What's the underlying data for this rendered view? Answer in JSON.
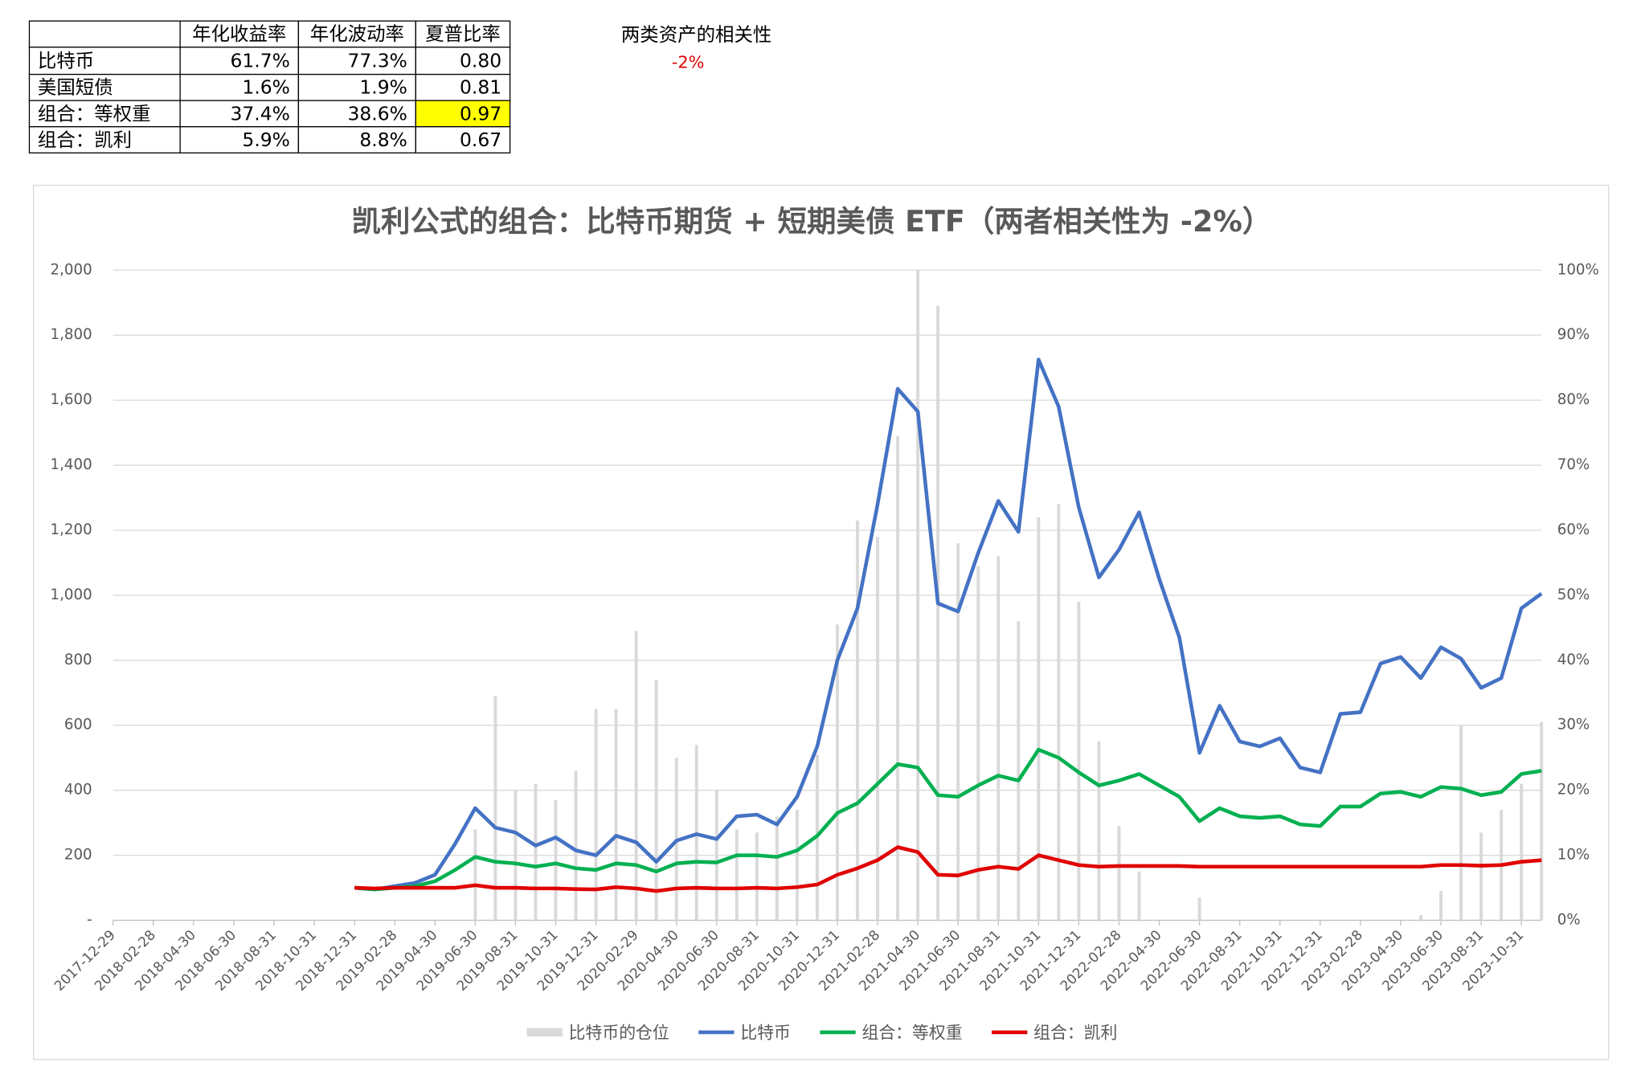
{
  "table": {
    "header": [
      "",
      "年化收益率",
      "年化波动率",
      "夏普比率"
    ],
    "rows": [
      [
        "比特币",
        "61.7%",
        "77.3%",
        "0.80"
      ],
      [
        "美国短债",
        "1.6%",
        "1.9%",
        "0.81"
      ],
      [
        "组合：等权重",
        "37.4%",
        "38.6%",
        "0.97"
      ],
      [
        "组合：凯利",
        "5.9%",
        "8.8%",
        "0.67"
      ]
    ],
    "highlight": {
      "row": 2,
      "col": 3,
      "color": "#ffff00"
    }
  },
  "correlation": {
    "label": "两类资产的相关性",
    "value": "-2%",
    "color": "#e00000"
  },
  "chart_data": {
    "type": "combo",
    "title": "凯利公式的组合：比特币期货 + 短期美债 ETF（两者相关性为 -2%）",
    "categories": [
      "2017-12-29",
      null,
      "2018-02-28",
      null,
      "2018-04-30",
      null,
      "2018-06-30",
      null,
      "2018-08-31",
      null,
      "2018-10-31",
      null,
      "2018-12-31",
      null,
      "2019-02-28",
      null,
      "2019-04-30",
      null,
      "2019-06-30",
      null,
      "2019-08-31",
      null,
      "2019-10-31",
      null,
      "2019-12-31",
      null,
      "2020-02-29",
      null,
      "2020-04-30",
      null,
      "2020-06-30",
      null,
      "2020-08-31",
      null,
      "2020-10-31",
      null,
      "2020-12-31",
      null,
      "2021-02-28",
      null,
      "2021-04-30",
      null,
      "2021-06-30",
      null,
      "2021-08-31",
      null,
      "2021-10-31",
      null,
      "2021-12-31",
      null,
      "2022-02-28",
      null,
      "2022-04-30",
      null,
      "2022-06-30",
      null,
      "2022-08-31",
      null,
      "2022-10-31",
      null,
      "2022-12-31",
      null,
      "2023-02-28",
      null,
      "2023-04-30",
      null,
      "2023-06-30",
      null,
      "2023-08-31",
      null,
      "2023-10-31",
      null
    ],
    "series": [
      {
        "name": "比特币的仓位",
        "type": "bar",
        "axis": "y2",
        "color": "#d9d9d9",
        "values": [
          null,
          null,
          null,
          null,
          null,
          null,
          null,
          null,
          null,
          null,
          null,
          null,
          0,
          0,
          0,
          0,
          0,
          0,
          14,
          34.5,
          20,
          21,
          18.5,
          23,
          32.5,
          32.5,
          44.5,
          37,
          25,
          27,
          20,
          14,
          13.5,
          16,
          17,
          25.5,
          45.5,
          61.5,
          59,
          74.5,
          100,
          94.5,
          58,
          54.5,
          56,
          46,
          62,
          64,
          49,
          27.5,
          14.5,
          7.5,
          0,
          0,
          3.5,
          0,
          0,
          0,
          0,
          0,
          0,
          0,
          0,
          0,
          0,
          0.8,
          4.5,
          30,
          13.5,
          17,
          21,
          30.5
        ]
      },
      {
        "name": "比特币",
        "type": "line",
        "color": "#4472c4",
        "values": [
          null,
          null,
          null,
          null,
          null,
          null,
          null,
          null,
          null,
          null,
          null,
          null,
          100,
          95,
          105,
          115,
          140,
          235,
          345,
          285,
          270,
          230,
          255,
          215,
          200,
          260,
          240,
          180,
          245,
          265,
          250,
          320,
          325,
          295,
          380,
          535,
          800,
          960,
          1280,
          1635,
          1565,
          975,
          950,
          1130,
          1290,
          1195,
          1725,
          1580,
          1270,
          1055,
          1140,
          1255,
          1050,
          870,
          515,
          660,
          550,
          535,
          560,
          470,
          455,
          635,
          640,
          790,
          810,
          745,
          840,
          805,
          715,
          745,
          960,
          1005
        ]
      },
      {
        "name": "组合：等权重",
        "type": "line",
        "color": "#00b050",
        "values": [
          null,
          null,
          null,
          null,
          null,
          null,
          null,
          null,
          null,
          null,
          null,
          null,
          100,
          95,
          100,
          105,
          120,
          155,
          195,
          180,
          175,
          165,
          175,
          160,
          155,
          175,
          170,
          150,
          175,
          180,
          178,
          200,
          200,
          195,
          215,
          260,
          330,
          360,
          420,
          480,
          470,
          385,
          380,
          415,
          445,
          430,
          525,
          500,
          455,
          415,
          430,
          450,
          415,
          380,
          305,
          345,
          320,
          315,
          320,
          295,
          290,
          350,
          350,
          390,
          395,
          380,
          410,
          405,
          385,
          395,
          450,
          460
        ]
      },
      {
        "name": "组合：凯利",
        "type": "line",
        "color": "#e00000",
        "values": [
          null,
          null,
          null,
          null,
          null,
          null,
          null,
          null,
          null,
          null,
          null,
          null,
          100,
          98,
          100,
          100,
          100,
          100,
          108,
          100,
          100,
          98,
          98,
          96,
          95,
          102,
          98,
          90,
          98,
          100,
          98,
          98,
          100,
          98,
          102,
          110,
          140,
          160,
          185,
          225,
          210,
          140,
          138,
          155,
          165,
          158,
          200,
          185,
          170,
          165,
          167,
          167,
          167,
          167,
          165,
          165,
          165,
          165,
          165,
          165,
          165,
          165,
          165,
          165,
          165,
          165,
          170,
          170,
          168,
          170,
          180,
          185
        ]
      }
    ],
    "ylim": [
      0,
      2000
    ],
    "yticks": [
      {
        "value": 0,
        "label": "-"
      },
      200,
      400,
      600,
      800,
      {
        "value": 1000,
        "label": "1,000"
      },
      {
        "value": 1200,
        "label": "1,200"
      },
      {
        "value": 1400,
        "label": "1,400"
      },
      {
        "value": 1600,
        "label": "1,600"
      },
      {
        "value": 1800,
        "label": "1,800"
      },
      {
        "value": 2000,
        "label": "2,000"
      }
    ],
    "y2lim": [
      0,
      100
    ],
    "y2ticks": [
      {
        "value": 0,
        "label": "0%"
      },
      {
        "value": 10,
        "label": "10%"
      },
      {
        "value": 20,
        "label": "20%"
      },
      {
        "value": 30,
        "label": "30%"
      },
      {
        "value": 40,
        "label": "40%"
      },
      {
        "value": 50,
        "label": "50%"
      },
      {
        "value": 60,
        "label": "60%"
      },
      {
        "value": 70,
        "label": "70%"
      },
      {
        "value": 80,
        "label": "80%"
      },
      {
        "value": 90,
        "label": "90%"
      },
      {
        "value": 100,
        "label": "100%"
      }
    ],
    "grid": true,
    "legend": "bottom"
  }
}
